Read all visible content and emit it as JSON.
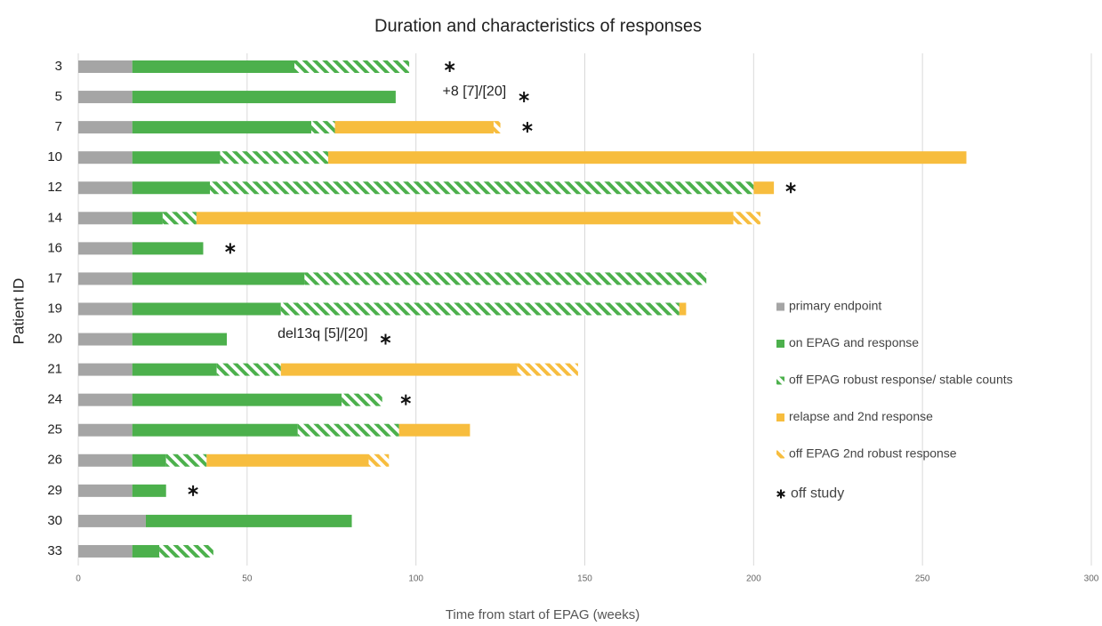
{
  "chart_data": {
    "type": "swimmer",
    "title": "Duration and characteristics of responses",
    "x_label": "Time from start of EPAG (weeks)",
    "y_label": "Patient ID",
    "categories": [
      "3",
      "5",
      "7",
      "10",
      "12",
      "14",
      "16",
      "17",
      "19",
      "20",
      "21",
      "24",
      "25",
      "26",
      "29",
      "30",
      "33"
    ],
    "series": [
      {
        "name": "primary endpoint",
        "color": "#a5a5a5",
        "pattern": "solid",
        "values": [
          16,
          16,
          16,
          16,
          16,
          16,
          16,
          16,
          16,
          16,
          16,
          16,
          16,
          16,
          16,
          20,
          16
        ]
      },
      {
        "name": "on EPAG and response",
        "color": "#4cb04c",
        "pattern": "solid",
        "values": [
          48,
          78,
          53,
          26,
          23,
          9,
          21,
          51,
          44,
          28,
          25,
          62,
          49,
          10,
          10,
          61,
          8
        ]
      },
      {
        "name": "off EPAG robust response/ stable counts",
        "color": "#4cb04c",
        "pattern": "hatch",
        "values": [
          34,
          null,
          7,
          32,
          161,
          10,
          null,
          119,
          118,
          null,
          19,
          12,
          30,
          12,
          null,
          null,
          16
        ]
      },
      {
        "name": "relapse and 2nd response",
        "color": "#f7bd3e",
        "pattern": "solid",
        "values": [
          null,
          null,
          47,
          189,
          6,
          159,
          null,
          null,
          2,
          null,
          70,
          null,
          21,
          48,
          null,
          null,
          null
        ]
      },
      {
        "name": "off EPAG 2nd robust response",
        "color": "#f7bd3e",
        "pattern": "hatch",
        "values": [
          null,
          null,
          2,
          null,
          null,
          8,
          null,
          null,
          null,
          null,
          18,
          null,
          null,
          6,
          null,
          null,
          null
        ]
      }
    ],
    "markers": {
      "name": "off study",
      "x": [
        110,
        132,
        133,
        null,
        211,
        null,
        45,
        null,
        null,
        91,
        null,
        97,
        null,
        null,
        34,
        null,
        null
      ]
    },
    "annotations": [
      {
        "text": "+8 [7]/[20]",
        "category": "5"
      },
      {
        "text": "del13q [5]/[20]",
        "category": "20"
      }
    ],
    "xlim": [
      0,
      300
    ],
    "xticks": [
      0,
      50,
      100,
      150,
      200,
      250,
      300
    ],
    "grid": true
  }
}
